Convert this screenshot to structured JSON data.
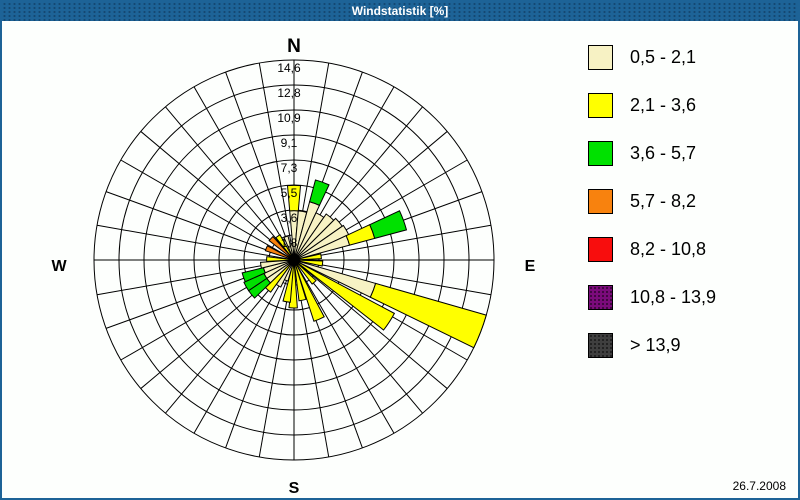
{
  "header": {
    "title": "Windstatistik [%]"
  },
  "footer": {
    "date": "26.7.2008"
  },
  "chart_data": {
    "type": "wind_rose",
    "title": "Windstatistik [%]",
    "units": "%",
    "grid": {
      "rings_on": true,
      "spokes_every_deg": 10,
      "sectors": 36
    },
    "ring_values": [
      1.8,
      3.6,
      5.5,
      7.3,
      9.1,
      10.9,
      12.8,
      14.6
    ],
    "ring_labels": [
      "1,8",
      "3,6",
      "5,5",
      "7,3",
      "9,1",
      "10,9",
      "12,8",
      "14,6"
    ],
    "rmax": 14.6,
    "compass": {
      "n": "N",
      "e": "E",
      "s": "S",
      "w": "W"
    },
    "speed_classes": [
      {
        "label": "0,5 - 2,1",
        "color": "#f7f2c4",
        "textured": false
      },
      {
        "label": "2,1 - 3,6",
        "color": "#ffff00",
        "textured": false
      },
      {
        "label": "3,6 - 5,7",
        "color": "#00e100",
        "textured": false
      },
      {
        "label": "5,7 - 8,2",
        "color": "#f8820e",
        "textured": false
      },
      {
        "label": "8,2 - 10,8",
        "color": "#f80d0d",
        "textured": false
      },
      {
        "label": "10,8 - 13,9",
        "color": "#7b0b7b",
        "textured": true
      },
      {
        "label": "> 13,9",
        "color": "#3f3f3f",
        "textured": true
      }
    ],
    "petals": [
      {
        "dir_deg": 0,
        "segments": [
          {
            "class": "0,5 - 2,1",
            "value": 3.6
          },
          {
            "class": "2,1 - 3,6",
            "value": 1.85
          }
        ]
      },
      {
        "dir_deg": 10,
        "segments": [
          {
            "class": "0,5 - 2,1",
            "value": 3.6
          }
        ]
      },
      {
        "dir_deg": 20,
        "segments": [
          {
            "class": "0,5 - 2,1",
            "value": 4.4
          },
          {
            "class": "3,6 - 5,7",
            "value": 1.65
          }
        ]
      },
      {
        "dir_deg": 30,
        "segments": [
          {
            "class": "0,5 - 2,1",
            "value": 3.8
          }
        ]
      },
      {
        "dir_deg": 40,
        "segments": [
          {
            "class": "0,5 - 2,1",
            "value": 4.1
          }
        ]
      },
      {
        "dir_deg": 50,
        "segments": [
          {
            "class": "0,5 - 2,1",
            "value": 4.3
          }
        ]
      },
      {
        "dir_deg": 60,
        "segments": [
          {
            "class": "0,5 - 2,1",
            "value": 4.4
          }
        ]
      },
      {
        "dir_deg": 70,
        "segments": [
          {
            "class": "0,5 - 2,1",
            "value": 4.2
          },
          {
            "class": "2,1 - 3,6",
            "value": 1.9
          },
          {
            "class": "3,6 - 5,7",
            "value": 2.4
          }
        ]
      },
      {
        "dir_deg": 82,
        "segments": [
          {
            "class": "2,1 - 3,6",
            "value": 2.0
          }
        ]
      },
      {
        "dir_deg": 97,
        "segments": [
          {
            "class": "2,1 - 3,6",
            "value": 2.1
          }
        ]
      },
      {
        "dir_deg": 111,
        "segments": [
          {
            "class": "0,5 - 2,1",
            "value": 6.2
          },
          {
            "class": "2,1 - 3,6",
            "value": 8.4
          }
        ]
      },
      {
        "dir_deg": 123,
        "segments": [
          {
            "class": "2,1 - 3,6",
            "value": 8.3
          }
        ]
      },
      {
        "dir_deg": 138,
        "segments": [
          {
            "class": "2,1 - 3,6",
            "value": 2.2
          }
        ]
      },
      {
        "dir_deg": 157,
        "segments": [
          {
            "class": "2,1 - 3,6",
            "value": 4.7
          }
        ]
      },
      {
        "dir_deg": 168,
        "segments": [
          {
            "class": "2,1 - 3,6",
            "value": 3.0
          }
        ]
      },
      {
        "dir_deg": 181,
        "segments": [
          {
            "class": "2,1 - 3,6",
            "value": 3.5
          }
        ]
      },
      {
        "dir_deg": 190,
        "segments": [
          {
            "class": "2,1 - 3,6",
            "value": 3.1
          }
        ]
      },
      {
        "dir_deg": 201,
        "segments": [
          {
            "class": "0,5 - 2,1",
            "value": 1.6
          }
        ]
      },
      {
        "dir_deg": 211,
        "segments": [
          {
            "class": "0,5 - 2,1",
            "value": 2.2
          }
        ]
      },
      {
        "dir_deg": 221,
        "segments": [
          {
            "class": "2,1 - 3,6",
            "value": 2.9
          }
        ]
      },
      {
        "dir_deg": 231,
        "segments": [
          {
            "class": "0,5 - 2,1",
            "value": 2.4
          },
          {
            "class": "3,6 - 5,7",
            "value": 1.6
          }
        ]
      },
      {
        "dir_deg": 241,
        "segments": [
          {
            "class": "0,5 - 2,1",
            "value": 2.4
          },
          {
            "class": "3,6 - 5,7",
            "value": 1.6
          }
        ]
      },
      {
        "dir_deg": 251,
        "segments": [
          {
            "class": "0,5 - 2,1",
            "value": 2.3
          },
          {
            "class": "3,6 - 5,7",
            "value": 1.6
          }
        ]
      },
      {
        "dir_deg": 261,
        "segments": [
          {
            "class": "0,5 - 2,1",
            "value": 2.45
          }
        ]
      },
      {
        "dir_deg": 272,
        "segments": [
          {
            "class": "2,1 - 3,6",
            "value": 2.0
          }
        ]
      },
      {
        "dir_deg": 293,
        "segments": [
          {
            "class": "5,7 - 8,2",
            "value": 2.2
          }
        ]
      },
      {
        "dir_deg": 313,
        "segments": [
          {
            "class": "5,7 - 8,2",
            "value": 2.3
          }
        ]
      },
      {
        "dir_deg": 326,
        "segments": [
          {
            "class": "2,1 - 3,6",
            "value": 2.1
          }
        ]
      },
      {
        "dir_deg": 341,
        "segments": [
          {
            "class": "0,5 - 2,1",
            "value": 1.8
          }
        ]
      },
      {
        "dir_deg": 351,
        "segments": [
          {
            "class": "0,5 - 2,1",
            "value": 1.2
          }
        ]
      }
    ]
  }
}
